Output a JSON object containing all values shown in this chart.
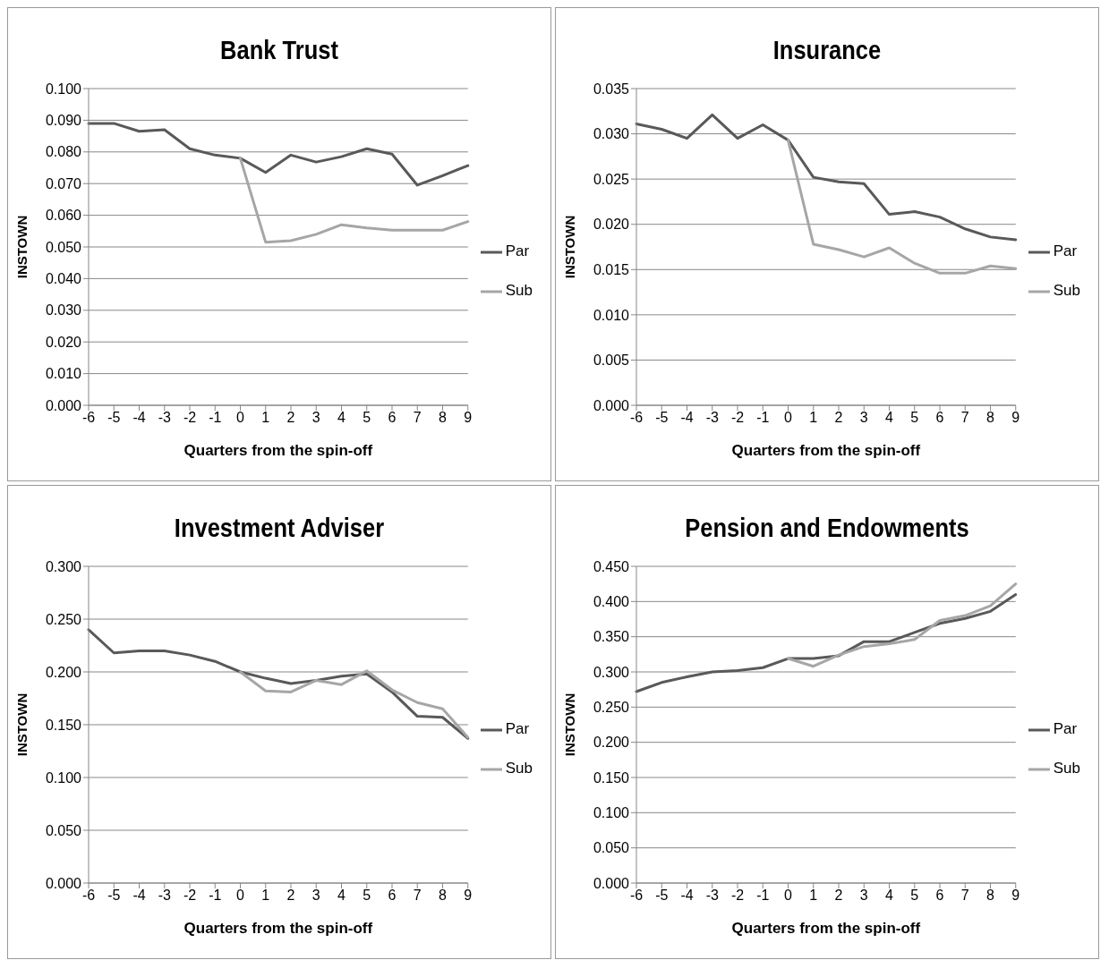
{
  "chart_data": [
    {
      "type": "line",
      "title": "Bank Trust",
      "xlabel": "Quarters from the spin-off",
      "ylabel": "INSTOWN",
      "categories": [
        "-6",
        "-5",
        "-4",
        "-3",
        "-2",
        "-1",
        "0",
        "1",
        "2",
        "3",
        "4",
        "5",
        "6",
        "7",
        "8",
        "9"
      ],
      "series": [
        {
          "name": "Par",
          "color": "#595959",
          "values": [
            0.089,
            0.089,
            0.0865,
            0.087,
            0.081,
            0.079,
            0.078,
            0.0735,
            0.079,
            0.0768,
            0.0785,
            0.081,
            0.0793,
            0.0695,
            0.0725,
            0.0757
          ]
        },
        {
          "name": "Sub",
          "color": "#a6a6a6",
          "values": [
            null,
            null,
            null,
            null,
            null,
            null,
            0.078,
            0.0515,
            0.052,
            0.054,
            0.057,
            0.056,
            0.0553,
            0.0553,
            0.0553,
            0.058
          ]
        }
      ],
      "ylim": [
        0,
        0.1
      ],
      "yticks": [
        {
          "value": 0,
          "label": "0.000"
        },
        {
          "value": 0.01,
          "label": "0.010"
        },
        {
          "value": 0.02,
          "label": "0.020"
        },
        {
          "value": 0.03,
          "label": "0.030"
        },
        {
          "value": 0.04,
          "label": "0.040"
        },
        {
          "value": 0.05,
          "label": "0.050"
        },
        {
          "value": 0.06,
          "label": "0.060"
        },
        {
          "value": 0.07,
          "label": "0.070"
        },
        {
          "value": 0.08,
          "label": "0.080"
        },
        {
          "value": 0.09,
          "label": "0.090"
        },
        {
          "value": 0.1,
          "label": "0.100"
        }
      ],
      "grid": "y",
      "legend": "right",
      "marker": "none",
      "line_style": "solid"
    },
    {
      "type": "line",
      "title": "Insurance",
      "xlabel": "Quarters from the spin-off",
      "ylabel": "INSTOWN",
      "categories": [
        "-6",
        "-5",
        "-4",
        "-3",
        "-2",
        "-1",
        "0",
        "1",
        "2",
        "3",
        "4",
        "5",
        "6",
        "7",
        "8",
        "9"
      ],
      "series": [
        {
          "name": "Par",
          "color": "#595959",
          "values": [
            0.0311,
            0.0305,
            0.0295,
            0.0321,
            0.0295,
            0.031,
            0.0293,
            0.0252,
            0.0247,
            0.0245,
            0.0211,
            0.0214,
            0.0208,
            0.0195,
            0.0186,
            0.0183
          ]
        },
        {
          "name": "Sub",
          "color": "#a6a6a6",
          "values": [
            null,
            null,
            null,
            null,
            null,
            null,
            0.0293,
            0.0178,
            0.0172,
            0.0164,
            0.0174,
            0.0157,
            0.0146,
            0.0146,
            0.0154,
            0.0151
          ]
        }
      ],
      "ylim": [
        0,
        0.035
      ],
      "yticks": [
        {
          "value": 0,
          "label": "0.000"
        },
        {
          "value": 0.005,
          "label": "0.005"
        },
        {
          "value": 0.01,
          "label": "0.010"
        },
        {
          "value": 0.015,
          "label": "0.015"
        },
        {
          "value": 0.02,
          "label": "0.020"
        },
        {
          "value": 0.025,
          "label": "0.025"
        },
        {
          "value": 0.03,
          "label": "0.030"
        },
        {
          "value": 0.035,
          "label": "0.035"
        }
      ],
      "grid": "y",
      "legend": "right",
      "marker": "none",
      "line_style": "solid"
    },
    {
      "type": "line",
      "title": "Investment Adviser",
      "xlabel": "Quarters from the spin-off",
      "ylabel": "INSTOWN",
      "categories": [
        "-6",
        "-5",
        "-4",
        "-3",
        "-2",
        "-1",
        "0",
        "1",
        "2",
        "3",
        "4",
        "5",
        "6",
        "7",
        "8",
        "9"
      ],
      "series": [
        {
          "name": "Par",
          "color": "#595959",
          "values": [
            0.24,
            0.218,
            0.22,
            0.22,
            0.216,
            0.21,
            0.2,
            0.194,
            0.189,
            0.192,
            0.196,
            0.198,
            0.181,
            0.158,
            0.157,
            0.137
          ]
        },
        {
          "name": "Sub",
          "color": "#a6a6a6",
          "values": [
            null,
            null,
            null,
            null,
            null,
            null,
            0.2,
            0.182,
            0.181,
            0.192,
            0.188,
            0.201,
            0.183,
            0.171,
            0.165,
            0.138
          ]
        }
      ],
      "ylim": [
        0,
        0.3
      ],
      "yticks": [
        {
          "value": 0,
          "label": "0.000"
        },
        {
          "value": 0.05,
          "label": "0.050"
        },
        {
          "value": 0.1,
          "label": "0.100"
        },
        {
          "value": 0.15,
          "label": "0.150"
        },
        {
          "value": 0.2,
          "label": "0.200"
        },
        {
          "value": 0.25,
          "label": "0.250"
        },
        {
          "value": 0.3,
          "label": "0.300"
        }
      ],
      "grid": "y",
      "legend": "right",
      "marker": "none",
      "line_style": "solid"
    },
    {
      "type": "line",
      "title": "Pension and Endowments",
      "xlabel": "Quarters from the spin-off",
      "ylabel": "INSTOWN",
      "categories": [
        "-6",
        "-5",
        "-4",
        "-3",
        "-2",
        "-1",
        "0",
        "1",
        "2",
        "3",
        "4",
        "5",
        "6",
        "7",
        "8",
        "9"
      ],
      "series": [
        {
          "name": "Par",
          "color": "#595959",
          "values": [
            0.272,
            0.285,
            0.293,
            0.3,
            0.302,
            0.306,
            0.319,
            0.319,
            0.323,
            0.343,
            0.343,
            0.356,
            0.369,
            0.376,
            0.386,
            0.41
          ]
        },
        {
          "name": "Sub",
          "color": "#a6a6a6",
          "values": [
            null,
            null,
            null,
            null,
            null,
            null,
            0.319,
            0.308,
            0.324,
            0.336,
            0.34,
            0.346,
            0.373,
            0.38,
            0.394,
            0.425
          ]
        }
      ],
      "ylim": [
        0,
        0.45
      ],
      "yticks": [
        {
          "value": 0,
          "label": "0.000"
        },
        {
          "value": 0.05,
          "label": "0.050"
        },
        {
          "value": 0.1,
          "label": "0.100"
        },
        {
          "value": 0.15,
          "label": "0.150"
        },
        {
          "value": 0.2,
          "label": "0.200"
        },
        {
          "value": 0.25,
          "label": "0.250"
        },
        {
          "value": 0.3,
          "label": "0.300"
        },
        {
          "value": 0.35,
          "label": "0.350"
        },
        {
          "value": 0.4,
          "label": "0.400"
        },
        {
          "value": 0.45,
          "label": "0.450"
        }
      ],
      "grid": "y",
      "legend": "right",
      "marker": "none",
      "line_style": "solid"
    }
  ]
}
